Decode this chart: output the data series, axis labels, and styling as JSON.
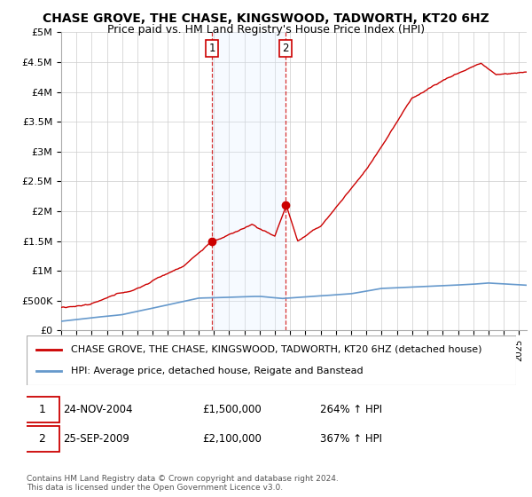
{
  "title": "CHASE GROVE, THE CHASE, KINGSWOOD, TADWORTH, KT20 6HZ",
  "subtitle": "Price paid vs. HM Land Registry's House Price Index (HPI)",
  "hpi_legend": "HPI: Average price, detached house, Reigate and Banstead",
  "property_legend": "CHASE GROVE, THE CHASE, KINGSWOOD, TADWORTH, KT20 6HZ (detached house)",
  "footer": "Contains HM Land Registry data © Crown copyright and database right 2024.\nThis data is licensed under the Open Government Licence v3.0.",
  "annotation1_date": "24-NOV-2004",
  "annotation1_price": "£1,500,000",
  "annotation1_hpi": "264% ↑ HPI",
  "annotation2_date": "25-SEP-2009",
  "annotation2_price": "£2,100,000",
  "annotation2_hpi": "367% ↑ HPI",
  "property_color": "#cc0000",
  "hpi_color": "#6699cc",
  "shading_color": "#ddeeff",
  "ylim": [
    0,
    5000000
  ],
  "yticks": [
    0,
    500000,
    1000000,
    1500000,
    2000000,
    2500000,
    3000000,
    3500000,
    4000000,
    4500000,
    5000000
  ],
  "ytick_labels": [
    "£0",
    "£500K",
    "£1M",
    "£1.5M",
    "£2M",
    "£2.5M",
    "£3M",
    "£3.5M",
    "£4M",
    "£4.5M",
    "£5M"
  ],
  "xstart": 1995.0,
  "xend": 2025.5
}
